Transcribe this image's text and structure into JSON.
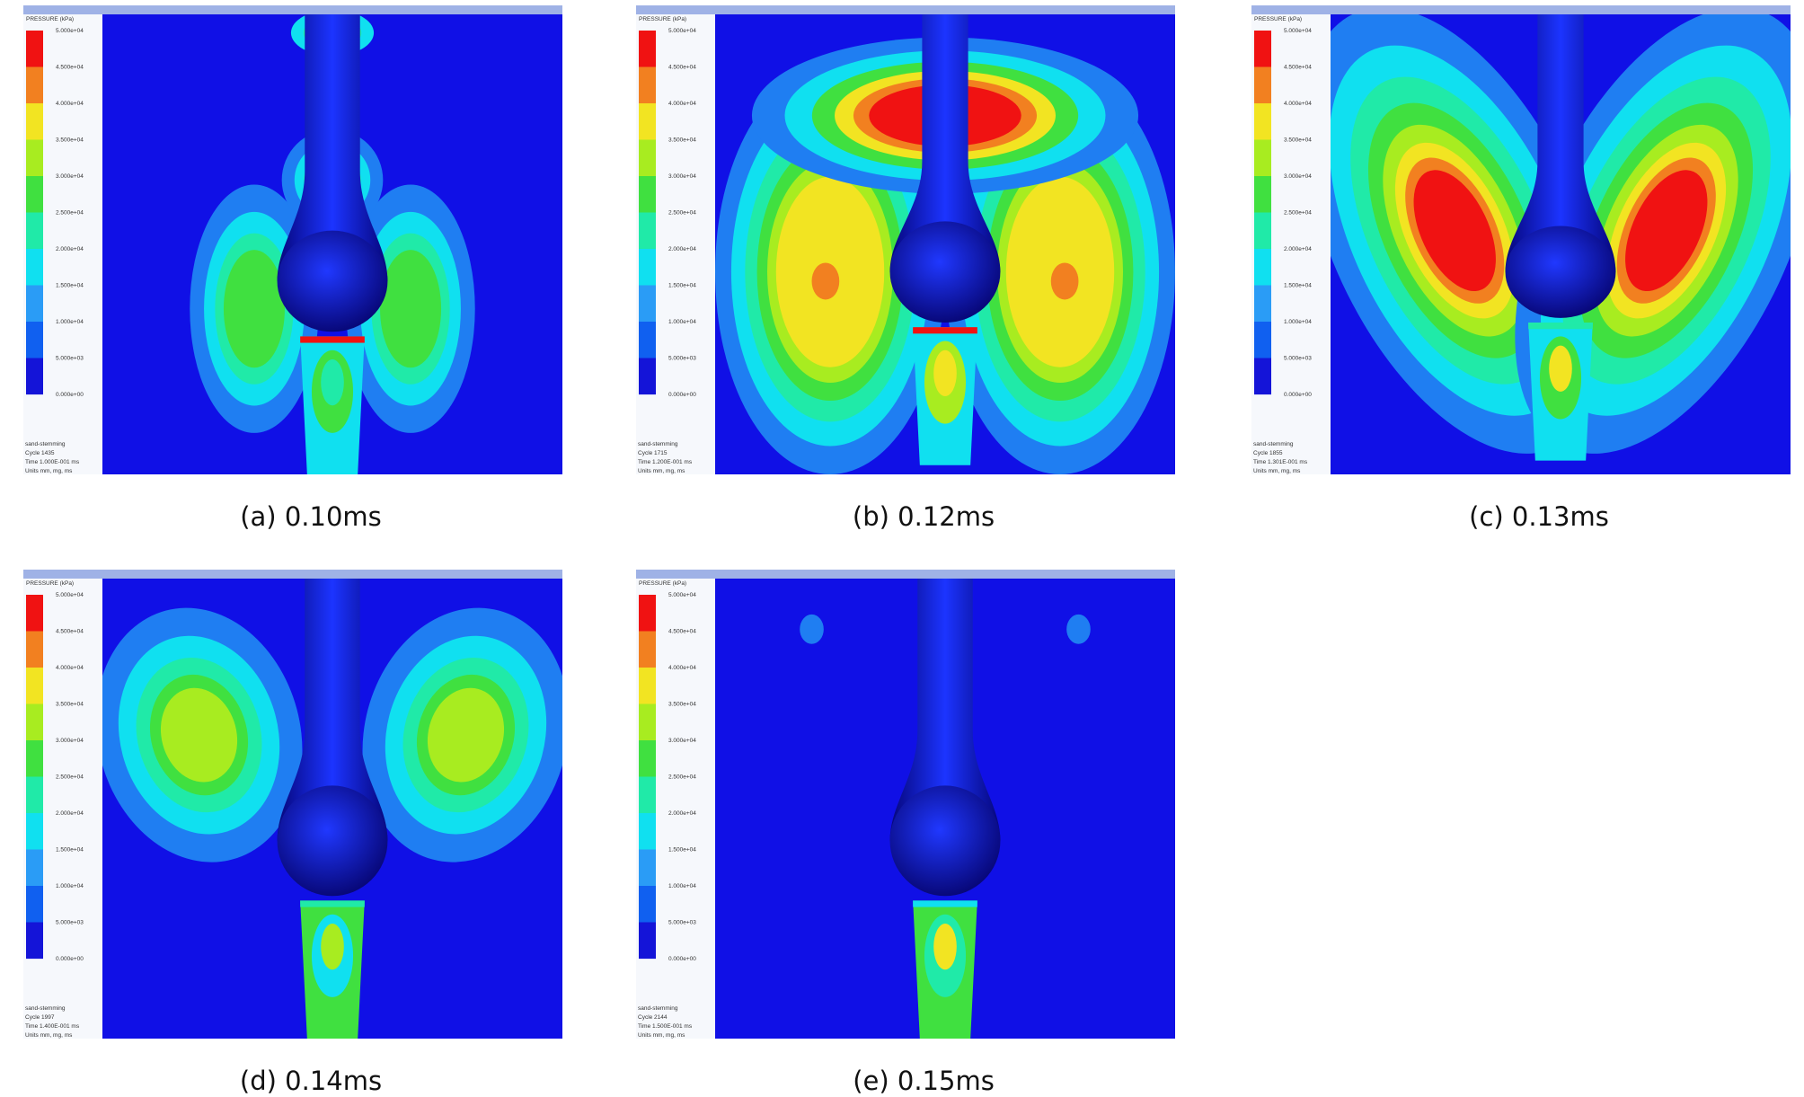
{
  "legend": {
    "title": "PRESSURE (kPa)",
    "labels": [
      "5.000e+04",
      "4.500e+04",
      "4.000e+04",
      "3.500e+04",
      "3.000e+04",
      "2.500e+04",
      "2.000e+04",
      "1.500e+04",
      "1.000e+04",
      "5.000e+03",
      "0.000e+00"
    ]
  },
  "panels": [
    {
      "caption": "(a) 0.10ms",
      "info": [
        "sand-stemming",
        "Cycle 1435",
        "Time 1.000E-001 ms",
        "Units mm, mg, ms"
      ]
    },
    {
      "caption": "(b) 0.12ms",
      "info": [
        "sand-stemming",
        "Cycle 1715",
        "Time 1.200E-001 ms",
        "Units mm, mg, ms"
      ]
    },
    {
      "caption": "(c) 0.13ms",
      "info": [
        "sand-stemming",
        "Cycle 1855",
        "Time 1.301E-001 ms",
        "Units mm, mg, ms"
      ]
    },
    {
      "caption": "(d) 0.14ms",
      "info": [
        "sand-stemming",
        "Cycle 1997",
        "Time 1.400E-001 ms",
        "Units mm, mg, ms"
      ]
    },
    {
      "caption": "(e) 0.15ms",
      "info": [
        "sand-stemming",
        "Cycle 2144",
        "Time 1.500E-001 ms",
        "Units mm, mg, ms"
      ]
    }
  ]
}
